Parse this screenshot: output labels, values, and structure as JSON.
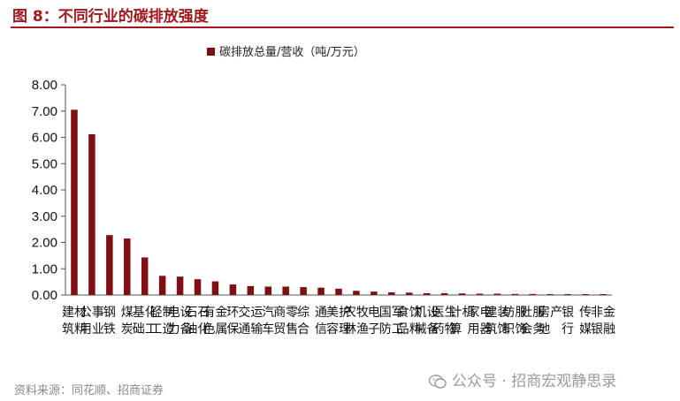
{
  "header": {
    "title": "图 8：不同行业的碳排放强度"
  },
  "chart_data": {
    "type": "bar",
    "title": "",
    "legend": "碳排放总量/营收（吨/万元）",
    "legend_position": "top-center",
    "bar_color": "#7f0f12",
    "ylim": [
      0,
      8
    ],
    "yticks": [
      "0.00",
      "1.00",
      "2.00",
      "3.00",
      "4.00",
      "5.00",
      "6.00",
      "7.00",
      "8.00"
    ],
    "xlabel": "",
    "ylabel": "",
    "grid": false,
    "categories": [
      "建筑材料",
      "公用事业",
      "钢铁",
      "煤炭",
      "基础化工",
      "轻工制造",
      "电力设备",
      "石油石化",
      "有色金属",
      "环保",
      "交通运输",
      "汽车",
      "商贸零售",
      "综合",
      "通信",
      "美容护理",
      "农林牧渔",
      "电子",
      "国防军工",
      "食品饮料",
      "机械设备",
      "医药生物",
      "计算机",
      "家用电器",
      "建筑装饰",
      "纺织服饰",
      "社会服务",
      "房地产",
      "银行",
      "传媒",
      "非银金融"
    ],
    "values": [
      7.05,
      6.12,
      2.28,
      2.15,
      1.43,
      0.73,
      0.7,
      0.6,
      0.52,
      0.4,
      0.34,
      0.32,
      0.32,
      0.3,
      0.28,
      0.24,
      0.16,
      0.13,
      0.1,
      0.09,
      0.07,
      0.07,
      0.06,
      0.05,
      0.05,
      0.04,
      0.04,
      0.03,
      0.02,
      0.01,
      0.01
    ]
  },
  "footer": {
    "source": "资料来源：同花顺、招商证券",
    "watermark": "公众号 · 招商宏观静思录"
  }
}
